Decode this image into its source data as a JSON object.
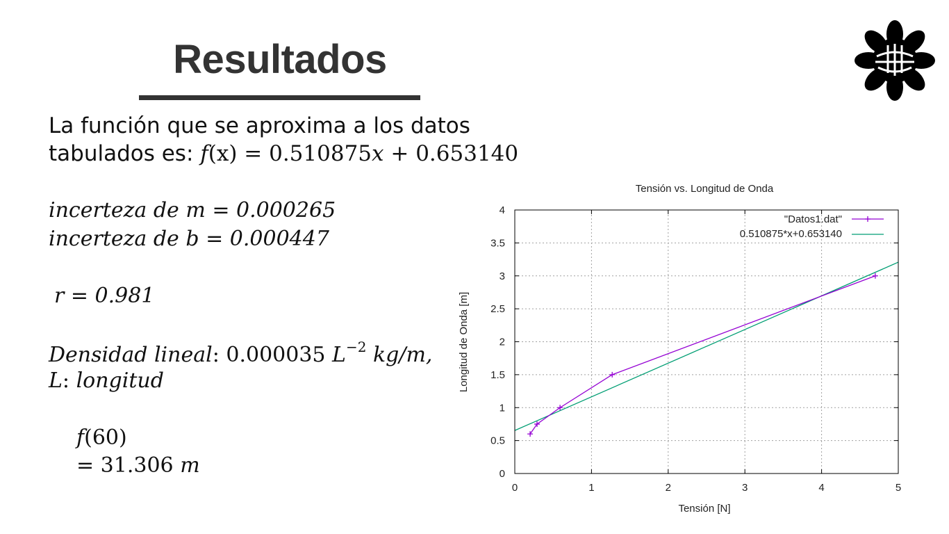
{
  "slide": {
    "title": "Resultados",
    "line1": "La función que se aproxima a los datos",
    "line2_prefix": "tabulados es: ",
    "line2_f": "f",
    "line2_paren": "(x)",
    "line2_eq": " = 0.510875",
    "line2_x": "x",
    "line2_rest": " + 0.653140",
    "unc_m_label": "incerteza de m",
    "unc_m_value": " = 0.000265",
    "unc_b_label": "incerteza de b",
    "unc_b_value": " = 0.000447",
    "r_label": "r",
    "r_value": " = 0.981",
    "density_label": "Densidad lineal",
    "density_colon": ": ",
    "density_value": "0.000035 ",
    "density_L": "L",
    "density_exp": "−2",
    "density_units": " kg/m,",
    "length_L": "L",
    "length_colon": ": ",
    "length_word": "longitud",
    "f60_f": "f",
    "f60_arg": "(60)",
    "f60_result": "= 31.306 ",
    "f60_unit": "m"
  },
  "logo": {
    "icon": "flower-emblem-icon",
    "color": "#000000"
  },
  "chart_data": {
    "type": "line",
    "title": "Tensión vs. Longitud de Onda",
    "xlabel": "Tensión [N]",
    "ylabel": "Longitud de Onda [m]",
    "xlim": [
      0,
      5
    ],
    "ylim": [
      0,
      4
    ],
    "xticks": [
      "0",
      "1",
      "2",
      "3",
      "4",
      "5"
    ],
    "yticks": [
      "0",
      "0.5",
      "1",
      "1.5",
      "2",
      "2.5",
      "3",
      "3.5",
      "4"
    ],
    "grid": true,
    "legend_position": "top-right",
    "series": [
      {
        "name": "\"Datos1.dat\"",
        "color": "#9400d3",
        "marker": "plus",
        "x": [
          0.2,
          0.29,
          0.59,
          1.27,
          4.7
        ],
        "y": [
          0.6,
          0.75,
          1.0,
          1.5,
          3.0
        ]
      },
      {
        "name": "0.510875*x+0.653140",
        "color": "#009e73",
        "marker": "none",
        "slope": 0.510875,
        "intercept": 0.65314,
        "x": [
          0,
          5
        ],
        "y": [
          0.65314,
          3.207515
        ]
      }
    ]
  }
}
